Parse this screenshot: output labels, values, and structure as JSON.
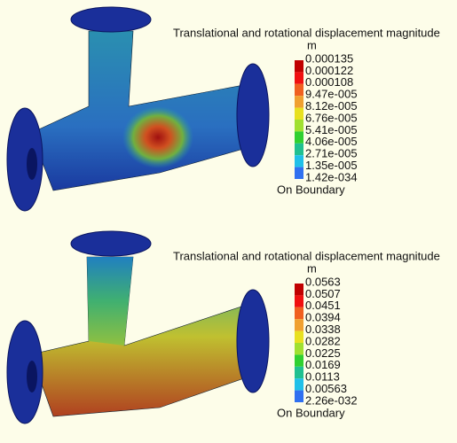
{
  "panels": [
    {
      "legend": {
        "title": "Translational and rotational displacement magnitude",
        "unit": "m",
        "levels": [
          "0.000135",
          "0.000122",
          "0.000108",
          "9.47e-005",
          "8.12e-005",
          "6.76e-005",
          "5.41e-005",
          "4.06e-005",
          "2.71e-005",
          "1.35e-005",
          "1.42e-034"
        ],
        "footer": "On Boundary"
      }
    },
    {
      "legend": {
        "title": "Translational and rotational displacement magnitude",
        "unit": "m",
        "levels": [
          "0.0563",
          "0.0507",
          "0.0451",
          "0.0394",
          "0.0338",
          "0.0282",
          "0.0225",
          "0.0169",
          "0.0113",
          "0.00563",
          "2.26e-032"
        ],
        "footer": "On Boundary"
      }
    }
  ]
}
